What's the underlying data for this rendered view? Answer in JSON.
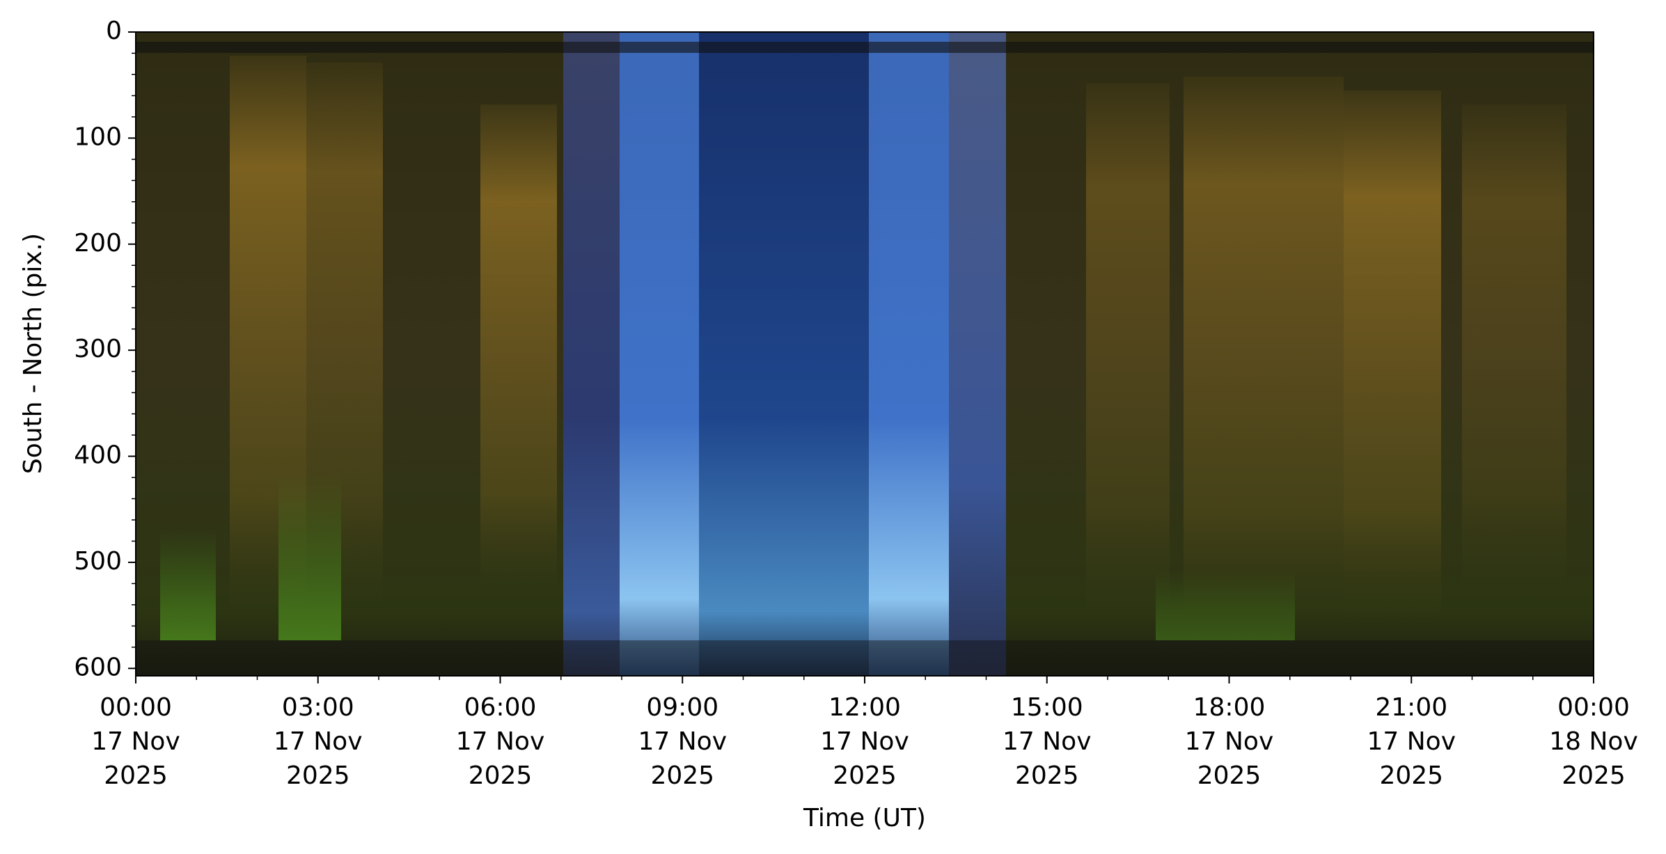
{
  "chart_data": {
    "type": "keogram",
    "x_label": "Time (UT)",
    "y_label": "South - North (pix.)",
    "xlim": [
      "2025-11-17T00:00",
      "2025-11-18T00:00"
    ],
    "xticks": [
      {
        "value": "2025-11-17T00:00",
        "label": "00:00\n17 Nov\n2025"
      },
      {
        "value": "2025-11-17T03:00",
        "label": "03:00\n17 Nov\n2025"
      },
      {
        "value": "2025-11-17T06:00",
        "label": "06:00\n17 Nov\n2025"
      },
      {
        "value": "2025-11-17T09:00",
        "label": "09:00\n17 Nov\n2025"
      },
      {
        "value": "2025-11-17T12:00",
        "label": "12:00\n17 Nov\n2025"
      },
      {
        "value": "2025-11-17T15:00",
        "label": "15:00\n17 Nov\n2025"
      },
      {
        "value": "2025-11-17T18:00",
        "label": "18:00\n17 Nov\n2025"
      },
      {
        "value": "2025-11-17T21:00",
        "label": "21:00\n17 Nov\n2025"
      },
      {
        "value": "2025-11-18T00:00",
        "label": "00:00\n18 Nov\n2025"
      }
    ],
    "ylim": [
      607,
      0
    ],
    "yticks": [
      0,
      100,
      200,
      300,
      400,
      500,
      600
    ]
  }
}
